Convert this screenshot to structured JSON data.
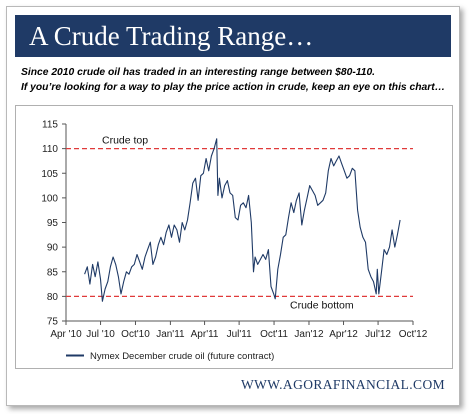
{
  "header": {
    "title": "A Crude Trading Range…",
    "subtitle_line1": "Since 2010 crude oil has traded in an interesting range between $80-110.",
    "subtitle_line2": "If you’re looking for a way to play the price action in crude, keep an eye on this chart…"
  },
  "footer": {
    "site": "WWW.AGORAFINANCIAL.COM"
  },
  "colors": {
    "banner": "#1f3a66",
    "series": "#1f3a66",
    "range_line": "#e03a3a"
  },
  "chart_data": {
    "type": "line",
    "title": "",
    "xlabel": "",
    "ylabel": "",
    "ylim": [
      75,
      115
    ],
    "xlim": [
      "2010-04-01",
      "2012-10-01"
    ],
    "yticks": [
      75,
      80,
      85,
      90,
      95,
      100,
      105,
      110,
      115
    ],
    "xticks": [
      {
        "date": "2010-04-01",
        "label": "Apr '10"
      },
      {
        "date": "2010-07-01",
        "label": "Jul '10"
      },
      {
        "date": "2010-10-01",
        "label": "Oct'10"
      },
      {
        "date": "2011-01-01",
        "label": "Jan'11"
      },
      {
        "date": "2011-04-01",
        "label": "Apr'11"
      },
      {
        "date": "2011-07-01",
        "label": "Jul'11"
      },
      {
        "date": "2011-10-01",
        "label": "Oct'11"
      },
      {
        "date": "2012-01-01",
        "label": "Jan'12"
      },
      {
        "date": "2012-04-01",
        "label": "Apr'12"
      },
      {
        "date": "2012-07-01",
        "label": "Jul'12"
      },
      {
        "date": "2012-10-01",
        "label": "Oct'12"
      }
    ],
    "grid": false,
    "legend_position": "bottom-left",
    "reference_lines": [
      {
        "y": 110,
        "label": "Crude top",
        "style": "dashed",
        "label_position": "above-left"
      },
      {
        "y": 80,
        "label": "Crude bottom",
        "style": "dashed",
        "label_position": "below-right"
      }
    ],
    "series": [
      {
        "name": "Nymex December crude oil (future contract)",
        "points": [
          [
            "2010-05-20",
            84.5
          ],
          [
            "2010-05-27",
            86.0
          ],
          [
            "2010-06-03",
            82.5
          ],
          [
            "2010-06-10",
            86.5
          ],
          [
            "2010-06-17",
            84.0
          ],
          [
            "2010-06-24",
            87.0
          ],
          [
            "2010-07-01",
            83.5
          ],
          [
            "2010-07-06",
            79.0
          ],
          [
            "2010-07-13",
            81.5
          ],
          [
            "2010-07-20",
            83.0
          ],
          [
            "2010-07-27",
            86.0
          ],
          [
            "2010-08-03",
            88.0
          ],
          [
            "2010-08-10",
            86.5
          ],
          [
            "2010-08-17",
            84.0
          ],
          [
            "2010-08-24",
            80.5
          ],
          [
            "2010-08-31",
            83.0
          ],
          [
            "2010-09-07",
            85.0
          ],
          [
            "2010-09-14",
            84.5
          ],
          [
            "2010-09-21",
            86.0
          ],
          [
            "2010-09-28",
            86.5
          ],
          [
            "2010-10-05",
            88.5
          ],
          [
            "2010-10-12",
            87.0
          ],
          [
            "2010-10-19",
            85.5
          ],
          [
            "2010-10-26",
            88.0
          ],
          [
            "2010-11-02",
            89.5
          ],
          [
            "2010-11-09",
            91.0
          ],
          [
            "2010-11-16",
            86.5
          ],
          [
            "2010-11-23",
            88.0
          ],
          [
            "2010-11-30",
            90.5
          ],
          [
            "2010-12-07",
            92.0
          ],
          [
            "2010-12-14",
            90.5
          ],
          [
            "2010-12-21",
            93.0
          ],
          [
            "2010-12-28",
            94.5
          ],
          [
            "2011-01-04",
            92.0
          ],
          [
            "2011-01-11",
            94.5
          ],
          [
            "2011-01-18",
            93.5
          ],
          [
            "2011-01-25",
            91.0
          ],
          [
            "2011-02-01",
            95.0
          ],
          [
            "2011-02-08",
            93.5
          ],
          [
            "2011-02-15",
            95.5
          ],
          [
            "2011-02-22",
            99.0
          ],
          [
            "2011-03-01",
            103.0
          ],
          [
            "2011-03-08",
            104.0
          ],
          [
            "2011-03-15",
            99.5
          ],
          [
            "2011-03-22",
            104.5
          ],
          [
            "2011-03-29",
            105.0
          ],
          [
            "2011-04-05",
            108.0
          ],
          [
            "2011-04-12",
            105.5
          ],
          [
            "2011-04-19",
            108.5
          ],
          [
            "2011-04-26",
            110.0
          ],
          [
            "2011-05-03",
            112.0
          ],
          [
            "2011-05-06",
            100.5
          ],
          [
            "2011-05-10",
            104.0
          ],
          [
            "2011-05-17",
            100.0
          ],
          [
            "2011-05-24",
            102.5
          ],
          [
            "2011-05-31",
            103.5
          ],
          [
            "2011-06-07",
            101.0
          ],
          [
            "2011-06-14",
            100.5
          ],
          [
            "2011-06-21",
            96.0
          ],
          [
            "2011-06-28",
            95.5
          ],
          [
            "2011-07-05",
            98.5
          ],
          [
            "2011-07-12",
            99.0
          ],
          [
            "2011-07-19",
            98.0
          ],
          [
            "2011-07-26",
            100.5
          ],
          [
            "2011-08-02",
            95.0
          ],
          [
            "2011-08-08",
            85.0
          ],
          [
            "2011-08-12",
            88.0
          ],
          [
            "2011-08-19",
            86.5
          ],
          [
            "2011-08-26",
            87.5
          ],
          [
            "2011-09-02",
            88.5
          ],
          [
            "2011-09-09",
            87.5
          ],
          [
            "2011-09-16",
            89.5
          ],
          [
            "2011-09-23",
            82.0
          ],
          [
            "2011-09-30",
            80.5
          ],
          [
            "2011-10-04",
            79.5
          ],
          [
            "2011-10-11",
            85.5
          ],
          [
            "2011-10-18",
            88.5
          ],
          [
            "2011-10-25",
            92.0
          ],
          [
            "2011-11-01",
            92.5
          ],
          [
            "2011-11-08",
            96.0
          ],
          [
            "2011-11-15",
            99.0
          ],
          [
            "2011-11-22",
            97.0
          ],
          [
            "2011-11-29",
            99.5
          ],
          [
            "2011-12-06",
            101.0
          ],
          [
            "2011-12-13",
            94.5
          ],
          [
            "2011-12-20",
            97.5
          ],
          [
            "2011-12-27",
            100.0
          ],
          [
            "2012-01-03",
            102.5
          ],
          [
            "2012-01-10",
            101.5
          ],
          [
            "2012-01-17",
            100.5
          ],
          [
            "2012-01-24",
            98.5
          ],
          [
            "2012-01-31",
            99.0
          ],
          [
            "2012-02-07",
            99.5
          ],
          [
            "2012-02-14",
            101.0
          ],
          [
            "2012-02-21",
            105.5
          ],
          [
            "2012-02-28",
            108.0
          ],
          [
            "2012-03-06",
            106.5
          ],
          [
            "2012-03-13",
            107.5
          ],
          [
            "2012-03-20",
            108.5
          ],
          [
            "2012-03-27",
            107.0
          ],
          [
            "2012-04-03",
            105.5
          ],
          [
            "2012-04-10",
            104.0
          ],
          [
            "2012-04-17",
            104.5
          ],
          [
            "2012-04-24",
            106.0
          ],
          [
            "2012-05-01",
            105.5
          ],
          [
            "2012-05-08",
            97.5
          ],
          [
            "2012-05-15",
            94.0
          ],
          [
            "2012-05-22",
            92.0
          ],
          [
            "2012-05-29",
            91.0
          ],
          [
            "2012-06-05",
            85.5
          ],
          [
            "2012-06-12",
            84.0
          ],
          [
            "2012-06-19",
            83.0
          ],
          [
            "2012-06-26",
            80.5
          ],
          [
            "2012-06-29",
            85.5
          ],
          [
            "2012-07-03",
            80.5
          ],
          [
            "2012-07-10",
            85.0
          ],
          [
            "2012-07-17",
            89.5
          ],
          [
            "2012-07-24",
            88.5
          ],
          [
            "2012-07-31",
            90.0
          ],
          [
            "2012-08-07",
            93.5
          ],
          [
            "2012-08-14",
            90.0
          ],
          [
            "2012-08-21",
            92.5
          ],
          [
            "2012-08-28",
            95.5
          ]
        ]
      }
    ]
  }
}
